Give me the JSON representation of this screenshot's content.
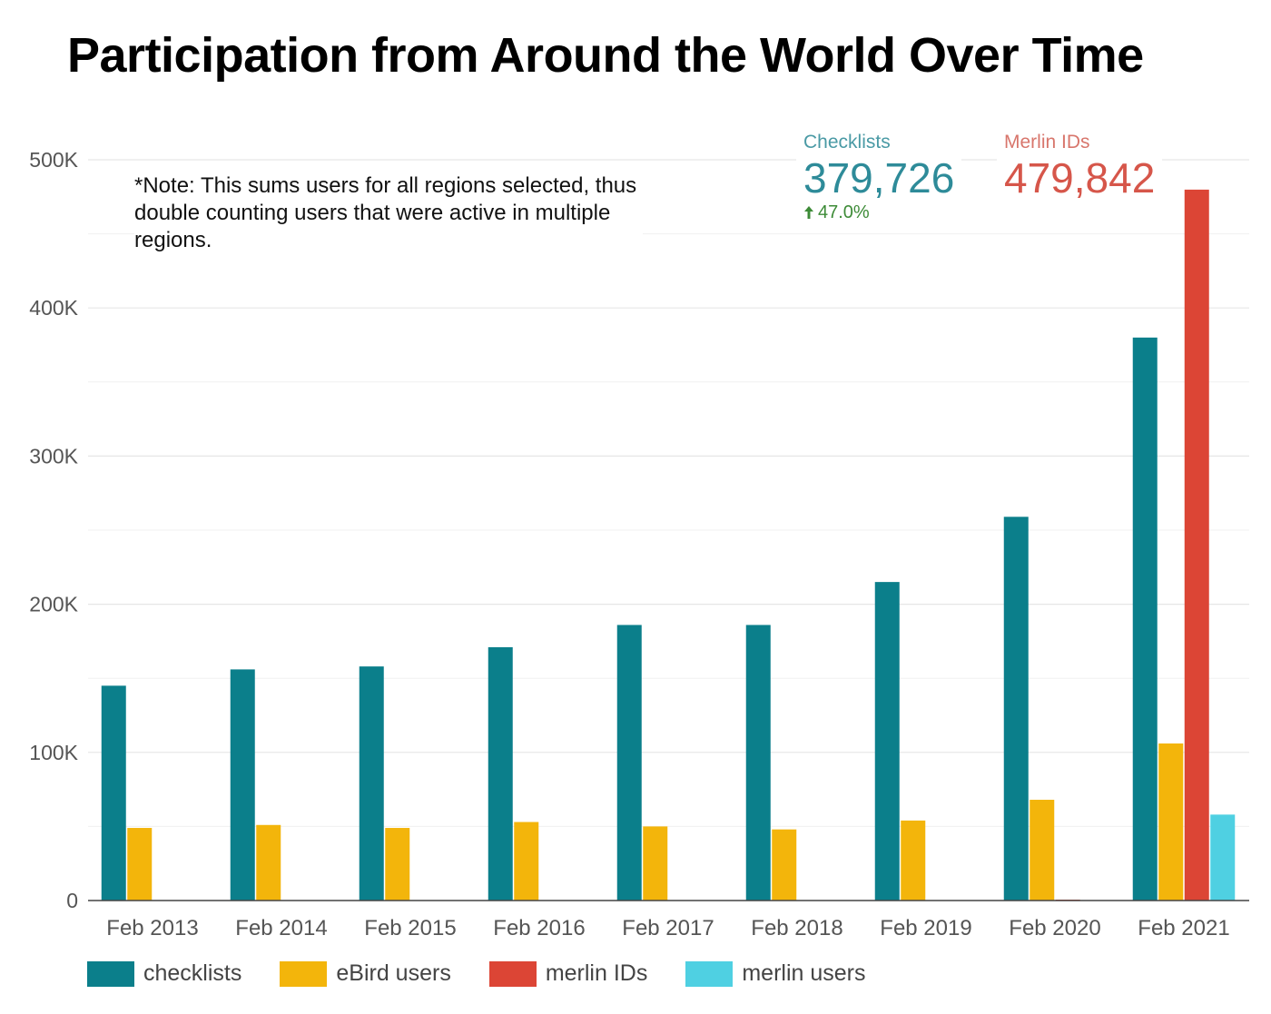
{
  "title": "Participation from Around the World Over Time",
  "note": "*Note: This sums users for all regions selected, thus double counting users that were active in multiple regions.",
  "kpis": {
    "checklists": {
      "label": "Checklists",
      "value": "379,726",
      "delta": "47.0%",
      "color": "#2e8b99"
    },
    "merlin_ids": {
      "label": "Merlin IDs",
      "value": "479,842",
      "color": "#d6564a"
    }
  },
  "chart_data": {
    "type": "bar",
    "categories": [
      "Feb 2013",
      "Feb 2014",
      "Feb 2015",
      "Feb 2016",
      "Feb 2017",
      "Feb 2018",
      "Feb 2019",
      "Feb 2020",
      "Feb 2021"
    ],
    "series": [
      {
        "name": "checklists",
        "color": "#0b7f8b",
        "values": [
          145000,
          156000,
          158000,
          171000,
          186000,
          186000,
          215000,
          259000,
          380000
        ]
      },
      {
        "name": "eBird users",
        "color": "#f3b50b",
        "values": [
          49000,
          51000,
          49000,
          53000,
          50000,
          48000,
          54000,
          68000,
          106000
        ]
      },
      {
        "name": "merlin IDs",
        "color": "#dc4535",
        "values": [
          0,
          0,
          0,
          0,
          0,
          0,
          0,
          600,
          479842
        ]
      },
      {
        "name": "merlin users",
        "color": "#4fd0e2",
        "values": [
          0,
          0,
          0,
          0,
          0,
          0,
          0,
          0,
          58000
        ]
      }
    ],
    "ylim": [
      0,
      500000
    ],
    "yticks": [
      0,
      100000,
      200000,
      300000,
      400000,
      500000
    ],
    "ytick_labels": [
      "0",
      "100K",
      "200K",
      "300K",
      "400K",
      "500K"
    ],
    "xlabel": "",
    "ylabel": "",
    "grid": true,
    "legend": "bottom-left"
  }
}
